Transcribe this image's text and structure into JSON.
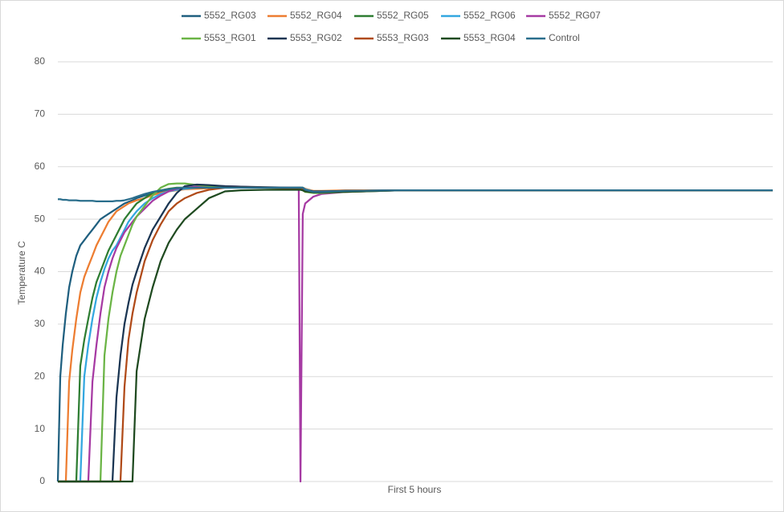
{
  "chart_data": {
    "type": "line",
    "x_label": "First 5 hours",
    "y_label": "Temperature C",
    "xlim": [
      0,
      5
    ],
    "ylim": [
      0,
      80
    ],
    "yticks": [
      0,
      10,
      20,
      30,
      40,
      50,
      60,
      70,
      80
    ],
    "grid": true,
    "legend": "top",
    "x": [
      0,
      0.017,
      0.034,
      0.056,
      0.079,
      0.101,
      0.129,
      0.157,
      0.185,
      0.213,
      0.242,
      0.27,
      0.298,
      0.326,
      0.354,
      0.382,
      0.41,
      0.438,
      0.466,
      0.494,
      0.522,
      0.551,
      0.607,
      0.663,
      0.719,
      0.775,
      0.832,
      0.888,
      0.972,
      1.056,
      1.169,
      1.281,
      1.449,
      1.618,
      1.685,
      1.697,
      1.713,
      1.73,
      1.787,
      1.843,
      2.011,
      2.404,
      3.528,
      5
    ],
    "series": [
      {
        "name": "5552_RG03",
        "color": "#1f5f7f",
        "values": [
          0,
          20,
          26,
          32,
          37,
          40,
          43,
          45,
          46,
          47,
          48,
          49,
          50,
          50.5,
          51,
          51.5,
          52,
          52.5,
          53,
          53.3,
          53.6,
          54,
          54.5,
          55,
          55.2,
          55.5,
          55.7,
          55.8,
          56,
          56,
          56,
          56,
          56,
          56,
          56,
          56,
          56,
          55.8,
          55.3,
          55.3,
          55.4,
          55.5,
          55.5,
          55.5
        ]
      },
      {
        "name": "5552_RG04",
        "color": "#ed7d31",
        "values": [
          0,
          0,
          0,
          0,
          19,
          25,
          31,
          36,
          39,
          41,
          43,
          45,
          46.5,
          48,
          49.5,
          50.5,
          51.5,
          52,
          52.5,
          53,
          53.3,
          53.6,
          54,
          54.6,
          55,
          55.3,
          55.5,
          55.7,
          55.8,
          55.9,
          56,
          56,
          56,
          56,
          56,
          56,
          56,
          55.8,
          55.4,
          55.4,
          55.5,
          55.5,
          55.5,
          55.5
        ]
      },
      {
        "name": "5552_RG05",
        "color": "#2e7d32",
        "values": [
          0,
          0,
          0,
          0,
          0,
          0,
          0,
          22,
          27,
          31,
          35,
          38,
          40,
          42,
          44,
          45.5,
          47,
          48.5,
          50,
          51,
          52,
          53,
          54,
          55,
          55.5,
          55.8,
          56,
          56,
          56,
          56,
          56,
          56,
          56,
          56,
          56,
          56,
          56,
          55.6,
          55.2,
          55.2,
          55.3,
          55.5,
          55.5,
          55.5
        ]
      },
      {
        "name": "5552_RG06",
        "color": "#33a7e0",
        "values": [
          0,
          0,
          0,
          0,
          0,
          0,
          0,
          0,
          20,
          26,
          31,
          35,
          38,
          40.5,
          42.5,
          44,
          45,
          46.5,
          48,
          49.5,
          50.5,
          51.5,
          53,
          54,
          54.8,
          55.3,
          55.6,
          55.8,
          56,
          56,
          56,
          56,
          56,
          56,
          56,
          56,
          56,
          55.7,
          55.3,
          55.3,
          55.4,
          55.5,
          55.5,
          55.5
        ]
      },
      {
        "name": "5552_RG07",
        "color": "#a63aa3",
        "values": [
          0,
          0,
          0,
          0,
          0,
          0,
          0,
          0,
          0,
          0,
          19,
          26,
          32,
          37,
          40,
          42.5,
          44.5,
          46,
          47.5,
          48.5,
          49.5,
          50.5,
          52,
          53.5,
          54.5,
          55.3,
          55.8,
          56,
          56.2,
          56.3,
          56.3,
          56.2,
          56,
          56,
          55.8,
          0,
          51,
          53,
          54.3,
          54.8,
          55.2,
          55.5,
          55.5,
          55.5
        ]
      },
      {
        "name": "5553_RG01",
        "color": "#6ab445",
        "values": [
          0,
          0,
          0,
          0,
          0,
          0,
          0,
          0,
          0,
          0,
          0,
          0,
          0,
          24,
          31,
          36,
          40,
          43,
          45,
          47,
          49,
          50.5,
          52.5,
          54.5,
          56,
          56.7,
          56.8,
          56.8,
          56.5,
          56.3,
          56.2,
          56,
          56,
          55.9,
          55.8,
          55.8,
          55.5,
          55.2,
          55,
          55,
          55.2,
          55.5,
          55.5,
          55.5
        ]
      },
      {
        "name": "5553_RG02",
        "color": "#1a3552",
        "values": [
          0,
          0,
          0,
          0,
          0,
          0,
          0,
          0,
          0,
          0,
          0,
          0,
          0,
          0,
          0,
          0,
          16,
          24,
          30,
          34,
          37.5,
          40,
          44.5,
          48,
          50.5,
          53,
          55,
          56.3,
          56.6,
          56.5,
          56.3,
          56.2,
          56.1,
          56,
          56,
          56,
          55.8,
          55.5,
          55.3,
          55.3,
          55.4,
          55.5,
          55.5,
          55.5
        ]
      },
      {
        "name": "5553_RG03",
        "color": "#b04a18",
        "values": [
          0,
          0,
          0,
          0,
          0,
          0,
          0,
          0,
          0,
          0,
          0,
          0,
          0,
          0,
          0,
          0,
          0,
          0,
          18,
          27,
          32,
          36,
          42,
          46,
          49,
          51.5,
          53,
          54,
          55,
          55.6,
          56,
          56,
          56,
          55.9,
          55.8,
          55.8,
          55.6,
          55.4,
          55.2,
          55.2,
          55.3,
          55.5,
          55.5,
          55.5
        ]
      },
      {
        "name": "5553_RG04",
        "color": "#1f4a20",
        "values": [
          0,
          0,
          0,
          0,
          0,
          0,
          0,
          0,
          0,
          0,
          0,
          0,
          0,
          0,
          0,
          0,
          0,
          0,
          0,
          0,
          0,
          21,
          31,
          37,
          42,
          45.5,
          48,
          50,
          52,
          54,
          55.3,
          55.5,
          55.6,
          55.6,
          55.6,
          55.6,
          55.5,
          55.3,
          55.1,
          55.1,
          55.2,
          55.5,
          55.5,
          55.5
        ]
      },
      {
        "name": "Control",
        "color": "#2a6e8c",
        "values": [
          53.8,
          53.8,
          53.7,
          53.7,
          53.6,
          53.6,
          53.6,
          53.5,
          53.5,
          53.5,
          53.5,
          53.4,
          53.4,
          53.4,
          53.4,
          53.4,
          53.5,
          53.5,
          53.6,
          53.8,
          54,
          54.3,
          54.8,
          55.2,
          55.5,
          55.7,
          55.9,
          56,
          56,
          56,
          56,
          56,
          56,
          56,
          56,
          56,
          56,
          55.6,
          55.2,
          55.2,
          55.4,
          55.5,
          55.5,
          55.5
        ]
      }
    ]
  }
}
